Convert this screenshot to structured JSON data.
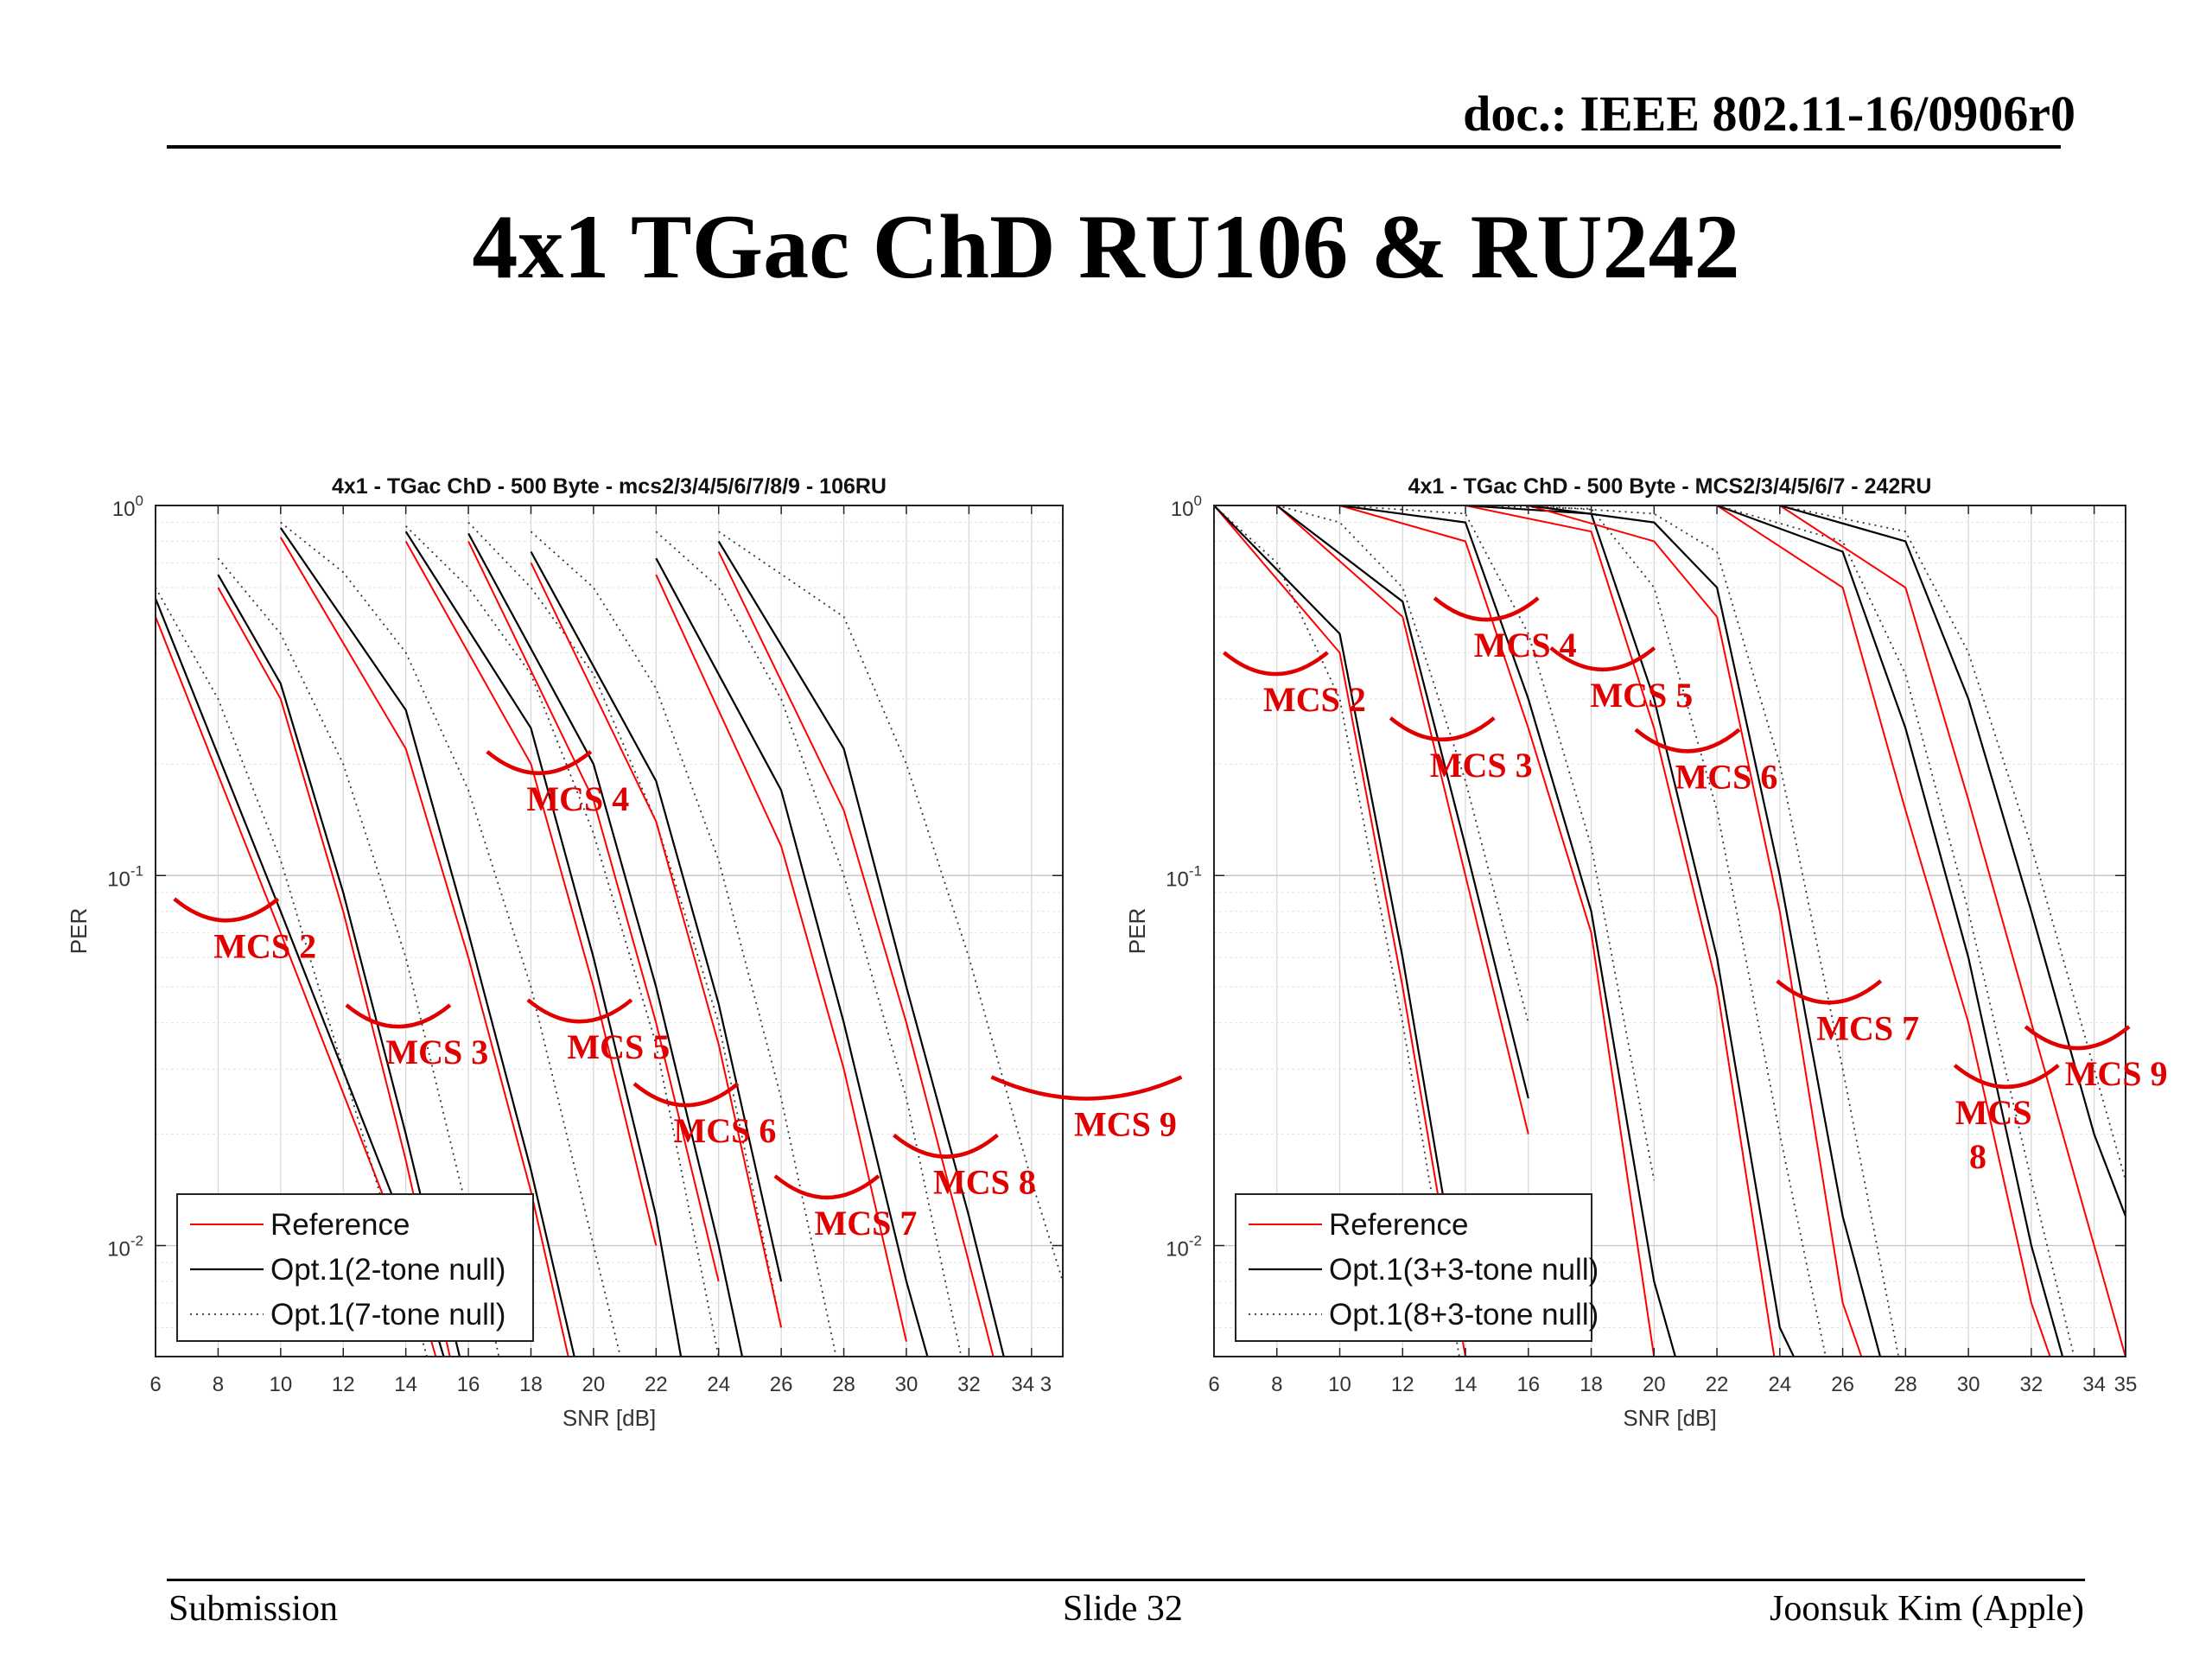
{
  "header": {
    "doc_id": "doc.: IEEE 802.11-16/0906r0"
  },
  "slide_title": "4x1 TGac ChD RU106 & RU242",
  "footer": {
    "left": "Submission",
    "center": "Slide 32",
    "right": "Joonsuk Kim (Apple)"
  },
  "colors": {
    "reference": "#ff0000",
    "opt": "#000000",
    "annotation": "#e00000",
    "grid": "#d6d6d6"
  },
  "chart_data": [
    {
      "type": "line",
      "title": "4x1 - TGac ChD - 500 Byte - mcs2/3/4/5/6/7/8/9 - 106RU",
      "xlabel": "SNR [dB]",
      "ylabel": "PER",
      "xlim": [
        6,
        35
      ],
      "ylim_log10": [
        -2.3,
        0
      ],
      "x_ticks": [
        6,
        8,
        10,
        12,
        14,
        16,
        18,
        20,
        22,
        24,
        26,
        28,
        30,
        32,
        34
      ],
      "x_tick_labels": [
        "6",
        "8",
        "10",
        "12",
        "14",
        "16",
        "18",
        "20",
        "22",
        "24",
        "26",
        "28",
        "30",
        "32",
        "34 3"
      ],
      "y_tick_labels": [
        {
          "base": "10",
          "exp": "0",
          "value": 1
        },
        {
          "base": "10",
          "exp": "-1",
          "value": 0.1
        },
        {
          "base": "10",
          "exp": "-2",
          "value": 0.01
        }
      ],
      "y_scale": "log",
      "grid": true,
      "legend": {
        "placement": "bottom-left",
        "entries": [
          {
            "label": "Reference",
            "style": "ref"
          },
          {
            "label": "Opt.1(2-tone null)",
            "style": "opt"
          },
          {
            "label": "Opt.1(7-tone null)",
            "style": "dot"
          }
        ]
      },
      "series": [
        {
          "style": "ref",
          "x": [
            6,
            10,
            14,
            16
          ],
          "y": [
            0.5,
            0.07,
            0.0095,
            0.0025
          ]
        },
        {
          "style": "opt",
          "x": [
            6,
            10,
            14,
            16
          ],
          "y": [
            0.56,
            0.08,
            0.011,
            0.003
          ]
        },
        {
          "style": "dot",
          "x": [
            6,
            8,
            10,
            12,
            14,
            16
          ],
          "y": [
            0.6,
            0.3,
            0.11,
            0.03,
            0.008,
            0.002
          ]
        },
        {
          "style": "ref",
          "x": [
            8,
            10,
            12,
            14,
            16
          ],
          "y": [
            0.6,
            0.3,
            0.08,
            0.017,
            0.003
          ]
        },
        {
          "style": "opt",
          "x": [
            8,
            10,
            12,
            14,
            16
          ],
          "y": [
            0.65,
            0.33,
            0.09,
            0.02,
            0.004
          ]
        },
        {
          "style": "dot",
          "x": [
            8,
            10,
            12,
            14,
            16,
            18
          ],
          "y": [
            0.72,
            0.45,
            0.2,
            0.06,
            0.012,
            0.002
          ]
        },
        {
          "style": "ref",
          "x": [
            10,
            14,
            16,
            18,
            20
          ],
          "y": [
            0.82,
            0.22,
            0.06,
            0.014,
            0.0025
          ]
        },
        {
          "style": "opt",
          "x": [
            10,
            14,
            16,
            18,
            20
          ],
          "y": [
            0.87,
            0.28,
            0.07,
            0.016,
            0.003
          ]
        },
        {
          "style": "dot",
          "x": [
            10,
            12,
            14,
            16,
            18,
            20,
            22
          ],
          "y": [
            0.9,
            0.66,
            0.4,
            0.17,
            0.05,
            0.01,
            0.002
          ]
        },
        {
          "style": "ref",
          "x": [
            14,
            18,
            20,
            22
          ],
          "y": [
            0.8,
            0.2,
            0.05,
            0.01
          ]
        },
        {
          "style": "opt",
          "x": [
            14,
            18,
            20,
            22,
            23
          ],
          "y": [
            0.85,
            0.25,
            0.06,
            0.012,
            0.004
          ]
        },
        {
          "style": "dot",
          "x": [
            14,
            16,
            18,
            20,
            22,
            24
          ],
          "y": [
            0.88,
            0.6,
            0.35,
            0.13,
            0.035,
            0.005
          ]
        },
        {
          "style": "ref",
          "x": [
            16,
            20,
            22,
            24
          ],
          "y": [
            0.8,
            0.16,
            0.04,
            0.008
          ]
        },
        {
          "style": "opt",
          "x": [
            16,
            20,
            22,
            24,
            25
          ],
          "y": [
            0.84,
            0.2,
            0.05,
            0.01,
            0.004
          ]
        },
        {
          "style": "dot",
          "x": [
            16,
            18,
            20,
            22,
            24,
            26
          ],
          "y": [
            0.9,
            0.6,
            0.35,
            0.14,
            0.04,
            0.006
          ]
        },
        {
          "style": "ref",
          "x": [
            18,
            22,
            24,
            26
          ],
          "y": [
            0.7,
            0.14,
            0.035,
            0.006
          ]
        },
        {
          "style": "opt",
          "x": [
            18,
            22,
            24,
            26
          ],
          "y": [
            0.75,
            0.18,
            0.045,
            0.008
          ]
        },
        {
          "style": "dot",
          "x": [
            18,
            20,
            22,
            24,
            26,
            28
          ],
          "y": [
            0.85,
            0.6,
            0.32,
            0.11,
            0.025,
            0.004
          ]
        },
        {
          "style": "ref",
          "x": [
            22,
            26,
            28,
            30
          ],
          "y": [
            0.65,
            0.12,
            0.03,
            0.0055
          ]
        },
        {
          "style": "opt",
          "x": [
            22,
            26,
            28,
            30,
            31
          ],
          "y": [
            0.72,
            0.17,
            0.04,
            0.008,
            0.004
          ]
        },
        {
          "style": "dot",
          "x": [
            22,
            24,
            26,
            28,
            30,
            32
          ],
          "y": [
            0.85,
            0.6,
            0.3,
            0.1,
            0.025,
            0.004
          ]
        },
        {
          "style": "ref",
          "x": [
            24,
            28,
            30,
            32,
            34
          ],
          "y": [
            0.75,
            0.15,
            0.04,
            0.009,
            0.002
          ]
        },
        {
          "style": "opt",
          "x": [
            24,
            28,
            30,
            32,
            34
          ],
          "y": [
            0.8,
            0.22,
            0.05,
            0.012,
            0.0025
          ]
        },
        {
          "style": "dot",
          "x": [
            24,
            28,
            30,
            32,
            34,
            35
          ],
          "y": [
            0.85,
            0.5,
            0.2,
            0.06,
            0.015,
            0.008
          ]
        }
      ],
      "annotations": [
        {
          "label": "MCS 2",
          "x": 9.5,
          "y": 0.06
        },
        {
          "label": "MCS 3",
          "x": 15.0,
          "y": 0.031
        },
        {
          "label": "MCS 4",
          "x": 19.5,
          "y": 0.15
        },
        {
          "label": "MCS 5",
          "x": 20.8,
          "y": 0.032
        },
        {
          "label": "MCS 6",
          "x": 24.2,
          "y": 0.019
        },
        {
          "label": "MCS 7",
          "x": 28.7,
          "y": 0.0107
        },
        {
          "label": "MCS 8",
          "x": 32.5,
          "y": 0.0138
        },
        {
          "label": "MCS 9",
          "x": 37.0,
          "y": 0.0198
        }
      ]
    },
    {
      "type": "line",
      "title": "4x1 - TGac ChD  - 500 Byte - MCS2/3/4/5/6/7 - 242RU",
      "xlabel": "SNR [dB]",
      "ylabel": "PER",
      "xlim": [
        6,
        35
      ],
      "ylim_log10": [
        -2.3,
        0
      ],
      "x_ticks": [
        6,
        8,
        10,
        12,
        14,
        16,
        18,
        20,
        22,
        24,
        26,
        28,
        30,
        32,
        34,
        35
      ],
      "x_tick_labels": [
        "6",
        "8",
        "10",
        "12",
        "14",
        "16",
        "18",
        "20",
        "22",
        "24",
        "26",
        "28",
        "30",
        "32",
        "34",
        "35"
      ],
      "y_tick_labels": [
        {
          "base": "10",
          "exp": "0",
          "value": 1
        },
        {
          "base": "10",
          "exp": "-1",
          "value": 0.1
        },
        {
          "base": "10",
          "exp": "-2",
          "value": 0.01
        }
      ],
      "y_scale": "log",
      "grid": true,
      "legend": {
        "placement": "bottom-left",
        "entries": [
          {
            "label": "Reference",
            "style": "ref"
          },
          {
            "label": "Opt.1(3+3-tone null)",
            "style": "opt"
          },
          {
            "label": "Opt.1(8+3-tone null)",
            "style": "dot"
          }
        ]
      },
      "series": [
        {
          "style": "ref",
          "x": [
            6,
            10,
            12,
            14
          ],
          "y": [
            1.0,
            0.4,
            0.05,
            0.005
          ]
        },
        {
          "style": "opt",
          "x": [
            6,
            10,
            12,
            14
          ],
          "y": [
            1.0,
            0.45,
            0.06,
            0.006
          ]
        },
        {
          "style": "dot",
          "x": [
            6,
            8,
            10,
            12,
            14
          ],
          "y": [
            1.0,
            0.7,
            0.3,
            0.04,
            0.004
          ]
        },
        {
          "style": "ref",
          "x": [
            8,
            12,
            14,
            16
          ],
          "y": [
            1.0,
            0.5,
            0.1,
            0.02
          ]
        },
        {
          "style": "opt",
          "x": [
            8,
            12,
            14,
            16
          ],
          "y": [
            1.0,
            0.55,
            0.12,
            0.025
          ]
        },
        {
          "style": "dot",
          "x": [
            8,
            10,
            12,
            14,
            16
          ],
          "y": [
            1.0,
            0.9,
            0.6,
            0.18,
            0.04
          ]
        },
        {
          "style": "ref",
          "x": [
            10,
            14,
            16,
            18,
            20
          ],
          "y": [
            1.0,
            0.8,
            0.25,
            0.07,
            0.005
          ]
        },
        {
          "style": "opt",
          "x": [
            10,
            14,
            16,
            18,
            20,
            21
          ],
          "y": [
            1.0,
            0.9,
            0.3,
            0.08,
            0.008,
            0.004
          ]
        },
        {
          "style": "dot",
          "x": [
            10,
            14,
            16,
            18,
            20
          ],
          "y": [
            1.0,
            0.95,
            0.45,
            0.12,
            0.015
          ]
        },
        {
          "style": "ref",
          "x": [
            14,
            18,
            20,
            22,
            24
          ],
          "y": [
            1.0,
            0.85,
            0.25,
            0.05,
            0.004
          ]
        },
        {
          "style": "opt",
          "x": [
            14,
            18,
            20,
            22,
            24,
            25
          ],
          "y": [
            1.0,
            0.95,
            0.3,
            0.06,
            0.006,
            0.004
          ]
        },
        {
          "style": "dot",
          "x": [
            14,
            18,
            20,
            22,
            24,
            26
          ],
          "y": [
            1.0,
            0.98,
            0.6,
            0.15,
            0.02,
            0.003
          ]
        },
        {
          "style": "ref",
          "x": [
            16,
            20,
            22,
            24,
            26,
            27
          ],
          "y": [
            1.0,
            0.8,
            0.5,
            0.08,
            0.007,
            0.004
          ]
        },
        {
          "style": "opt",
          "x": [
            16,
            20,
            22,
            24,
            26,
            27.5
          ],
          "y": [
            1.0,
            0.9,
            0.6,
            0.1,
            0.012,
            0.004
          ]
        },
        {
          "style": "dot",
          "x": [
            16,
            20,
            22,
            24,
            26,
            28
          ],
          "y": [
            1.0,
            0.95,
            0.75,
            0.2,
            0.03,
            0.004
          ]
        },
        {
          "style": "ref",
          "x": [
            22,
            26,
            28,
            30,
            32,
            33
          ],
          "y": [
            1.0,
            0.6,
            0.15,
            0.04,
            0.007,
            0.004
          ]
        },
        {
          "style": "opt",
          "x": [
            22,
            26,
            28,
            30,
            32,
            33
          ],
          "y": [
            1.0,
            0.75,
            0.25,
            0.06,
            0.01,
            0.005
          ]
        },
        {
          "style": "dot",
          "x": [
            22,
            26,
            28,
            30,
            32,
            34
          ],
          "y": [
            1.0,
            0.8,
            0.35,
            0.08,
            0.015,
            0.003
          ]
        },
        {
          "style": "ref",
          "x": [
            24,
            28,
            30,
            32,
            34,
            35
          ],
          "y": [
            1.0,
            0.6,
            0.16,
            0.04,
            0.01,
            0.005
          ]
        },
        {
          "style": "opt",
          "x": [
            24,
            28,
            30,
            32,
            34,
            35
          ],
          "y": [
            1.0,
            0.8,
            0.3,
            0.08,
            0.02,
            0.012
          ]
        },
        {
          "style": "dot",
          "x": [
            24,
            28,
            30,
            32,
            34,
            35
          ],
          "y": [
            1.0,
            0.85,
            0.4,
            0.12,
            0.03,
            0.015
          ]
        }
      ],
      "annotations": [
        {
          "label": "MCS 2",
          "x": 9.2,
          "y": 0.278
        },
        {
          "label": "MCS 3",
          "x": 14.5,
          "y": 0.185
        },
        {
          "label": "MCS 4",
          "x": 15.9,
          "y": 0.39
        },
        {
          "label": "MCS 5",
          "x": 19.6,
          "y": 0.286
        },
        {
          "label": "MCS 6",
          "x": 22.3,
          "y": 0.172
        },
        {
          "label": "MCS 7",
          "x": 26.8,
          "y": 0.036
        },
        {
          "label": "MCS",
          "x": 30.8,
          "y": 0.0213
        },
        {
          "label": "8",
          "x": 30.3,
          "y": 0.0162
        },
        {
          "label": "MCS 9",
          "x": 34.7,
          "y": 0.0271
        }
      ]
    }
  ]
}
